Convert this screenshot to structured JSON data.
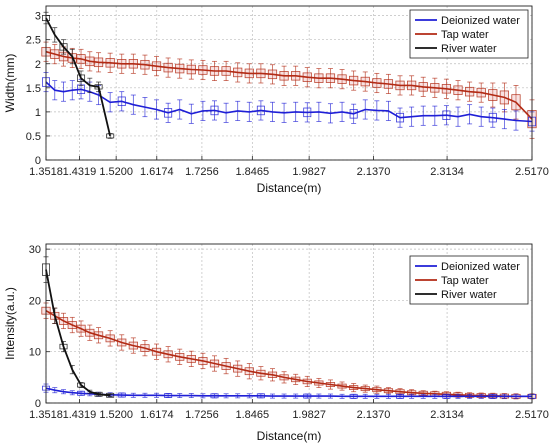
{
  "colors": {
    "deionized": "#1f1fd6",
    "tap": "#b22a14",
    "river": "#111111",
    "grid": "#bdbdbd",
    "axis": "#222222",
    "box_tap": "#e8a0a0"
  },
  "chart_data": [
    {
      "type": "line",
      "xlabel": "Distance(m)",
      "ylabel": "Width(mm)",
      "xlim": [
        1.3518,
        2.517
      ],
      "ylim": [
        0,
        3.2
      ],
      "xticks": [
        "1.3518",
        "1.4319",
        "1.5200",
        "1.6174",
        "1.7256",
        "1.8465",
        "1.9827",
        "2.1370",
        "2.3134",
        "2.5170"
      ],
      "xtick_values": [
        1.3518,
        1.4319,
        1.52,
        1.6174,
        1.7256,
        1.8465,
        1.9827,
        2.137,
        2.3134,
        2.517
      ],
      "yticks": [
        "0",
        "0.5",
        "1",
        "1.5",
        "2",
        "2.5",
        "3"
      ],
      "ytick_values": [
        0,
        0.5,
        1,
        1.5,
        2,
        2.5,
        3
      ],
      "grid": true,
      "legend_position": "top-right",
      "legend": [
        "Deionized water",
        "Tap water",
        "River water"
      ],
      "series": [
        {
          "name": "Deionized water",
          "color_key": "deionized",
          "x": [
            1.3518,
            1.3728,
            1.3938,
            1.4148,
            1.4358,
            1.4568,
            1.4778,
            1.5056,
            1.5334,
            1.5612,
            1.589,
            1.6168,
            1.6446,
            1.6724,
            1.7002,
            1.728,
            1.7558,
            1.7836,
            1.8114,
            1.8392,
            1.867,
            1.8948,
            1.9226,
            1.9504,
            1.9782,
            2.006,
            2.0338,
            2.0616,
            2.0894,
            2.1172,
            2.145,
            2.1728,
            2.2006,
            2.2284,
            2.2562,
            2.284,
            2.3118,
            2.3396,
            2.3674,
            2.3952,
            2.423,
            2.4508,
            2.4786,
            2.517
          ],
          "y": [
            1.62,
            1.45,
            1.42,
            1.45,
            1.47,
            1.42,
            1.35,
            1.2,
            1.22,
            1.15,
            1.1,
            1.05,
            0.98,
            1.05,
            0.96,
            1.02,
            1.03,
            0.98,
            1.02,
            1.0,
            1.03,
            1.0,
            0.98,
            1.0,
            0.99,
            1.0,
            0.97,
            1.0,
            0.96,
            1.05,
            1.03,
            1.02,
            0.88,
            0.9,
            0.92,
            0.92,
            0.93,
            0.9,
            0.95,
            0.9,
            0.88,
            0.85,
            0.82,
            0.8
          ],
          "err": [
            0.2,
            0.2,
            0.2,
            0.2,
            0.2,
            0.2,
            0.2,
            0.2,
            0.2,
            0.2,
            0.2,
            0.2,
            0.2,
            0.2,
            0.2,
            0.2,
            0.2,
            0.2,
            0.2,
            0.2,
            0.2,
            0.2,
            0.2,
            0.2,
            0.2,
            0.2,
            0.2,
            0.2,
            0.2,
            0.2,
            0.2,
            0.2,
            0.2,
            0.2,
            0.2,
            0.2,
            0.2,
            0.2,
            0.2,
            0.2,
            0.2,
            0.2,
            0.2,
            0.2
          ],
          "box_step": 4
        },
        {
          "name": "Tap water",
          "color_key": "tap",
          "x": [
            1.3518,
            1.3728,
            1.3938,
            1.4148,
            1.4358,
            1.4568,
            1.4778,
            1.5056,
            1.5334,
            1.5612,
            1.589,
            1.6168,
            1.6446,
            1.6724,
            1.7002,
            1.728,
            1.7558,
            1.7836,
            1.8114,
            1.8392,
            1.867,
            1.8948,
            1.9226,
            1.9504,
            1.9782,
            2.006,
            2.0338,
            2.0616,
            2.0894,
            2.1172,
            2.145,
            2.1728,
            2.2006,
            2.2284,
            2.2562,
            2.284,
            2.3118,
            2.3396,
            2.3674,
            2.3952,
            2.423,
            2.4508,
            2.4786,
            2.517
          ],
          "y": [
            2.25,
            2.2,
            2.15,
            2.12,
            2.1,
            2.05,
            2.03,
            2.02,
            2.0,
            2.0,
            1.98,
            1.95,
            1.92,
            1.9,
            1.88,
            1.87,
            1.85,
            1.85,
            1.82,
            1.8,
            1.8,
            1.78,
            1.75,
            1.75,
            1.72,
            1.7,
            1.7,
            1.68,
            1.65,
            1.63,
            1.6,
            1.58,
            1.55,
            1.55,
            1.52,
            1.5,
            1.48,
            1.45,
            1.42,
            1.4,
            1.35,
            1.3,
            1.2,
            0.85
          ],
          "err": [
            0.2,
            0.2,
            0.2,
            0.2,
            0.2,
            0.2,
            0.2,
            0.2,
            0.2,
            0.2,
            0.2,
            0.2,
            0.2,
            0.2,
            0.2,
            0.2,
            0.2,
            0.2,
            0.2,
            0.2,
            0.2,
            0.2,
            0.2,
            0.2,
            0.2,
            0.2,
            0.2,
            0.2,
            0.2,
            0.2,
            0.2,
            0.2,
            0.2,
            0.2,
            0.2,
            0.2,
            0.2,
            0.2,
            0.2,
            0.2,
            0.25,
            0.3,
            0.35,
            0.4
          ],
          "box_step": 1
        },
        {
          "name": "River water",
          "color_key": "river",
          "x": [
            1.3518,
            1.3728,
            1.3938,
            1.4148,
            1.4358,
            1.4568,
            1.4778,
            1.5056
          ],
          "y": [
            2.95,
            2.6,
            2.35,
            2.15,
            1.7,
            1.55,
            1.52,
            0.5
          ],
          "err": [
            0.12,
            0.15,
            0.15,
            0.15,
            0.15,
            0.15,
            0.1,
            0.05
          ],
          "box_step": 2
        }
      ]
    },
    {
      "type": "line",
      "xlabel": "Distance(m)",
      "ylabel": "Intensity(a.u.)",
      "xlim": [
        1.3518,
        2.517
      ],
      "ylim": [
        0,
        31
      ],
      "xticks": [
        "1.3518",
        "1.4319",
        "1.5200",
        "1.6174",
        "1.7256",
        "1.8465",
        "1.9827",
        "2.1370",
        "2.3134",
        "2.5170"
      ],
      "xtick_values": [
        1.3518,
        1.4319,
        1.52,
        1.6174,
        1.7256,
        1.8465,
        1.9827,
        2.137,
        2.3134,
        2.517
      ],
      "yticks": [
        "0",
        "10",
        "20",
        "30"
      ],
      "ytick_values": [
        0,
        10,
        20,
        30
      ],
      "grid": true,
      "legend_position": "top-right",
      "legend": [
        "Deionized water",
        "Tap water",
        "River water"
      ],
      "series": [
        {
          "name": "Deionized water",
          "color_key": "deionized",
          "x": [
            1.3518,
            1.3728,
            1.3938,
            1.4148,
            1.4358,
            1.4568,
            1.4778,
            1.5056,
            1.5334,
            1.5612,
            1.589,
            1.6168,
            1.6446,
            1.6724,
            1.7002,
            1.728,
            1.7558,
            1.7836,
            1.8114,
            1.8392,
            1.867,
            1.8948,
            1.9226,
            1.9504,
            1.9782,
            2.006,
            2.0338,
            2.0616,
            2.0894,
            2.1172,
            2.145,
            2.1728,
            2.2006,
            2.2284,
            2.2562,
            2.284,
            2.3118,
            2.3396,
            2.3674,
            2.3952,
            2.423,
            2.4508,
            2.4786,
            2.517
          ],
          "y": [
            2.9,
            2.5,
            2.2,
            2.0,
            1.9,
            1.8,
            1.7,
            1.6,
            1.55,
            1.5,
            1.5,
            1.5,
            1.45,
            1.45,
            1.45,
            1.4,
            1.4,
            1.4,
            1.4,
            1.4,
            1.4,
            1.35,
            1.35,
            1.35,
            1.35,
            1.35,
            1.35,
            1.3,
            1.3,
            1.3,
            1.3,
            1.3,
            1.3,
            1.3,
            1.3,
            1.3,
            1.3,
            1.3,
            1.3,
            1.3,
            1.3,
            1.3,
            1.3,
            1.3
          ],
          "err": [
            0.8,
            0.5,
            0.4,
            0.4,
            0.4,
            0.4,
            0.4,
            0.4,
            0.4,
            0.4,
            0.4,
            0.4,
            0.4,
            0.4,
            0.4,
            0.4,
            0.4,
            0.4,
            0.4,
            0.4,
            0.4,
            0.4,
            0.4,
            0.4,
            0.4,
            0.4,
            0.4,
            0.4,
            0.4,
            0.4,
            0.4,
            0.4,
            0.4,
            0.4,
            0.4,
            0.4,
            0.4,
            0.4,
            0.4,
            0.4,
            0.4,
            0.4,
            0.4,
            0.4
          ],
          "box_step": 4
        },
        {
          "name": "Tap water",
          "color_key": "tap",
          "x": [
            1.3518,
            1.3728,
            1.3938,
            1.4148,
            1.4358,
            1.4568,
            1.4778,
            1.5056,
            1.5334,
            1.5612,
            1.589,
            1.6168,
            1.6446,
            1.6724,
            1.7002,
            1.728,
            1.7558,
            1.7836,
            1.8114,
            1.8392,
            1.867,
            1.8948,
            1.9226,
            1.9504,
            1.9782,
            2.006,
            2.0338,
            2.0616,
            2.0894,
            2.1172,
            2.145,
            2.1728,
            2.2006,
            2.2284,
            2.2562,
            2.284,
            2.3118,
            2.3396,
            2.3674,
            2.3952,
            2.423,
            2.4508,
            2.4786,
            2.517
          ],
          "y": [
            18.0,
            17.0,
            16.0,
            15.2,
            14.5,
            13.7,
            13.2,
            12.6,
            11.8,
            11.2,
            10.7,
            10.0,
            9.5,
            9.0,
            8.6,
            8.2,
            7.7,
            7.2,
            6.7,
            6.2,
            5.8,
            5.5,
            5.0,
            4.6,
            4.2,
            3.9,
            3.6,
            3.3,
            3.0,
            2.8,
            2.6,
            2.4,
            2.2,
            2.0,
            1.9,
            1.8,
            1.7,
            1.6,
            1.5,
            1.45,
            1.4,
            1.35,
            1.3,
            1.3
          ],
          "err": [
            1.5,
            1.5,
            1.5,
            1.5,
            1.5,
            1.5,
            1.5,
            1.5,
            1.5,
            1.5,
            1.5,
            1.5,
            1.5,
            1.5,
            1.5,
            1.5,
            1.5,
            1.5,
            1.5,
            1.5,
            1.3,
            1.2,
            1.1,
            1.0,
            1.0,
            0.9,
            0.9,
            0.8,
            0.8,
            0.7,
            0.7,
            0.6,
            0.6,
            0.6,
            0.5,
            0.5,
            0.5,
            0.5,
            0.5,
            0.5,
            0.5,
            0.5,
            0.5,
            0.5
          ],
          "box_step": 1
        },
        {
          "name": "River water",
          "color_key": "river",
          "x": [
            1.3518,
            1.3728,
            1.3938,
            1.4148,
            1.4358,
            1.4568,
            1.4778,
            1.5056
          ],
          "y": [
            26.0,
            17.0,
            11.0,
            6.5,
            3.5,
            2.2,
            1.7,
            1.5
          ],
          "err": [
            2.5,
            1.5,
            1.0,
            0.8,
            0.5,
            0.3,
            0.2,
            0.2
          ],
          "box_step": 2
        }
      ]
    }
  ]
}
